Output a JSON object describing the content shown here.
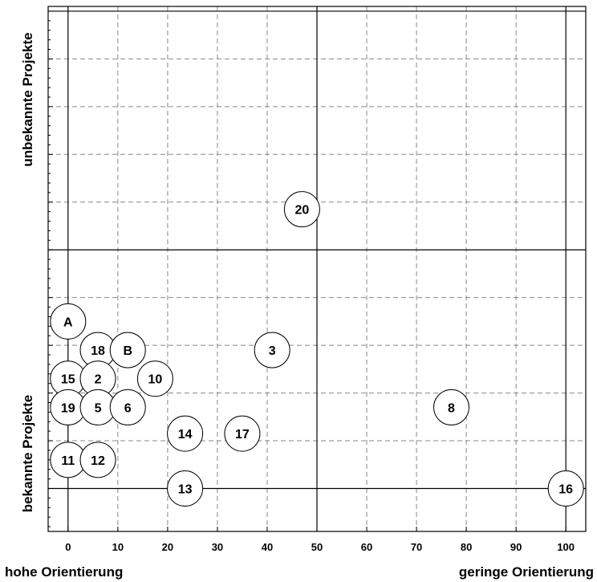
{
  "chart_data": {
    "type": "scatter",
    "xlabel_left": "hohe Orientierung",
    "xlabel_right": "geringe Orientierung",
    "ylabel_top": "unbekannte Projekte",
    "ylabel_bottom": "bekannte Projekte",
    "xlim": [
      -4,
      104
    ],
    "ylim": [
      -0.9,
      10.1
    ],
    "x_ticks": [
      0,
      10,
      20,
      30,
      40,
      50,
      60,
      70,
      80,
      90,
      100
    ],
    "grid": true,
    "points": [
      {
        "label": "A",
        "x": 0,
        "y": 3.5
      },
      {
        "label": "18",
        "x": 6,
        "y": 2.9
      },
      {
        "label": "B",
        "x": 12,
        "y": 2.9
      },
      {
        "label": "3",
        "x": 41,
        "y": 2.9
      },
      {
        "label": "15",
        "x": 0,
        "y": 2.3
      },
      {
        "label": "2",
        "x": 6,
        "y": 2.3
      },
      {
        "label": "10",
        "x": 17.5,
        "y": 2.3
      },
      {
        "label": "19",
        "x": 0,
        "y": 1.7
      },
      {
        "label": "5",
        "x": 6,
        "y": 1.7
      },
      {
        "label": "6",
        "x": 12,
        "y": 1.7
      },
      {
        "label": "8",
        "x": 77,
        "y": 1.7
      },
      {
        "label": "14",
        "x": 23.5,
        "y": 1.15
      },
      {
        "label": "17",
        "x": 35,
        "y": 1.15
      },
      {
        "label": "11",
        "x": 0,
        "y": 0.6
      },
      {
        "label": "12",
        "x": 6,
        "y": 0.6
      },
      {
        "label": "13",
        "x": 23.5,
        "y": 0
      },
      {
        "label": "16",
        "x": 100,
        "y": 0
      },
      {
        "label": "20",
        "x": 47,
        "y": 5.85
      }
    ]
  }
}
